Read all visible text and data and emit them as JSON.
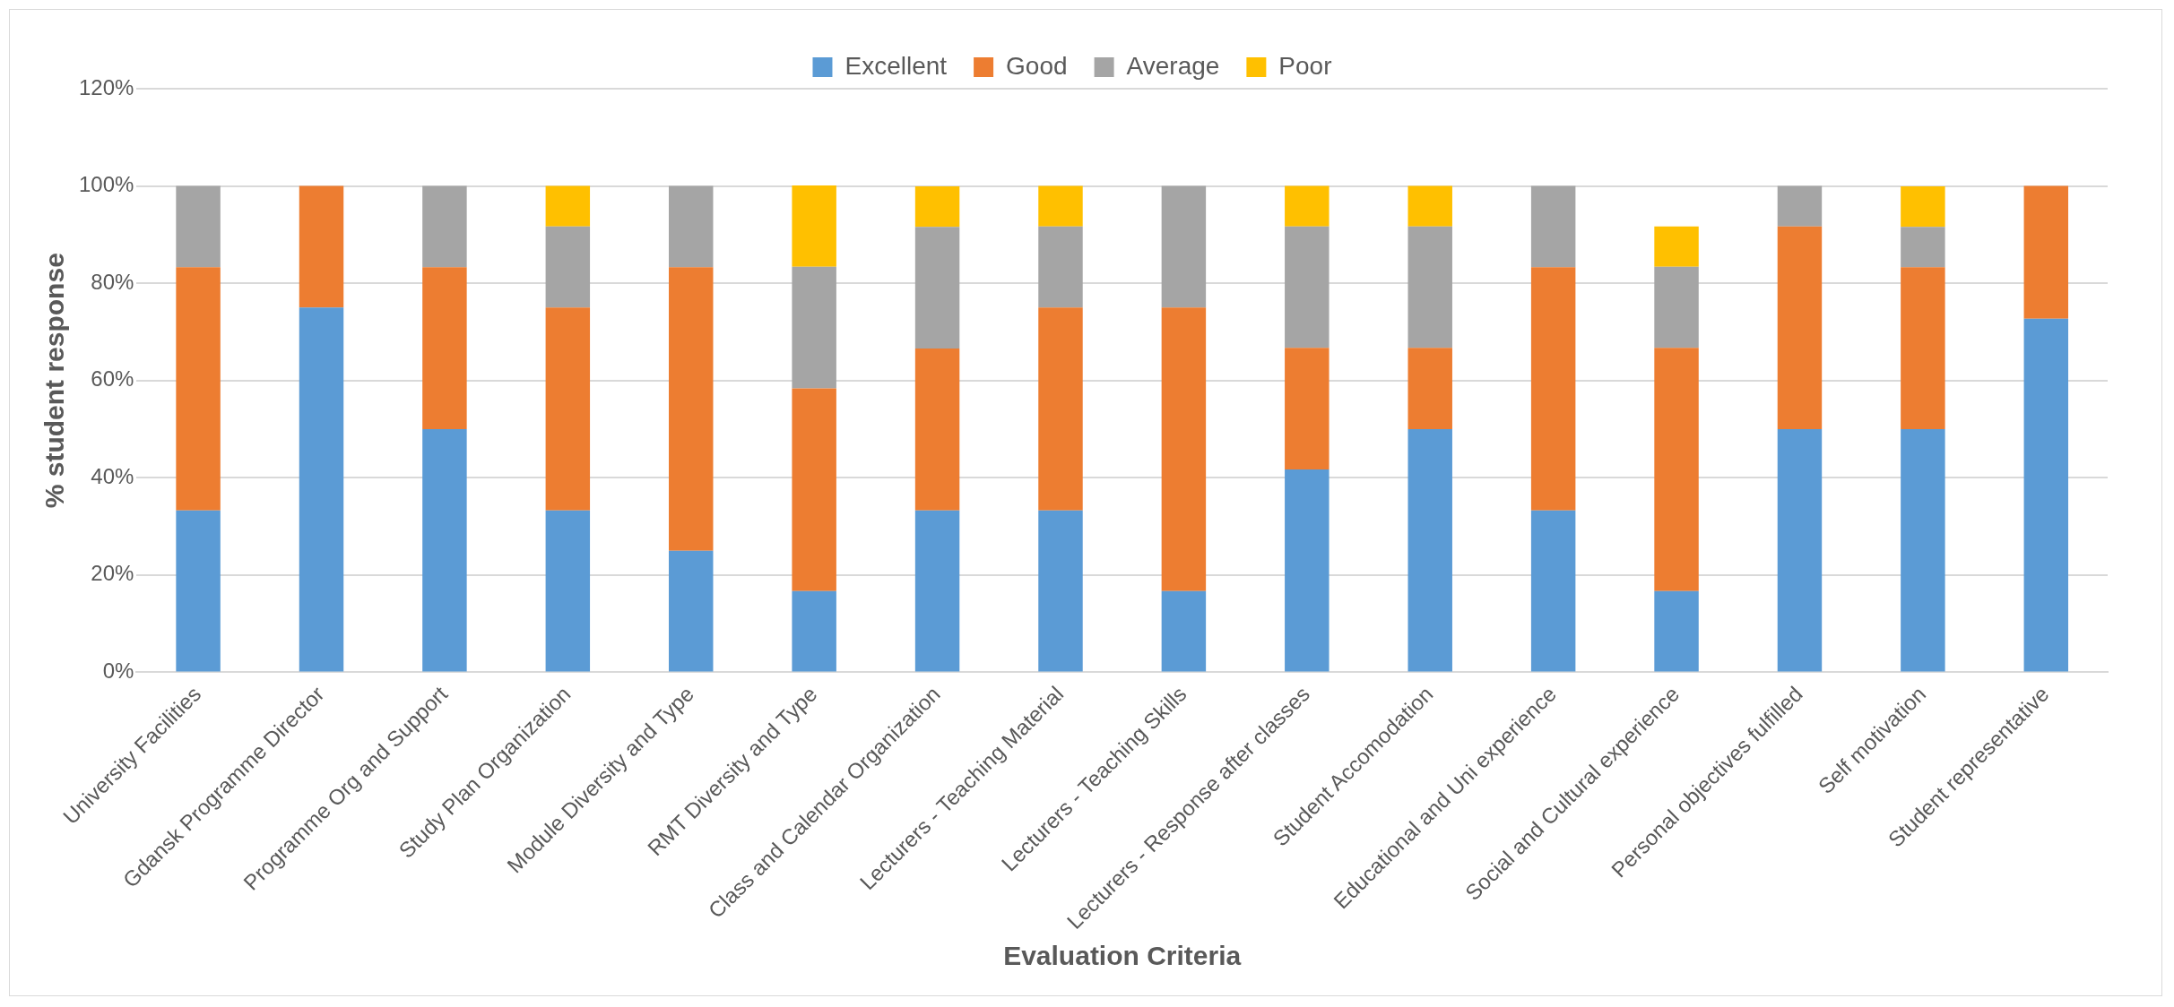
{
  "chart_data": {
    "type": "bar",
    "stacked": true,
    "xlabel": "Evaluation Criteria",
    "ylabel": "% student response",
    "categories": [
      "University Facilities",
      "Gdansk Programme Director",
      "Programme Org and Support",
      "Study Plan Organization",
      "Module Diversity and Type",
      "RMT Diversity and Type",
      "Class and Calendar Organization",
      "Lecturers - Teaching Material",
      "Lecturers - Teaching Skills",
      "Lecturers - Response after classes",
      "Student Accomodation",
      "Educational and Uni experience",
      "Social and Cultural experience",
      "Personal objectives fulfilled",
      "Self motivation",
      "Student representative"
    ],
    "series": [
      {
        "name": "Excellent",
        "color": "#5b9bd5",
        "values": [
          33.3,
          75,
          50,
          33.3,
          25,
          16.7,
          33.3,
          33.3,
          16.7,
          41.7,
          50,
          33.3,
          16.7,
          50,
          50,
          72.7
        ]
      },
      {
        "name": "Good",
        "color": "#ed7d31",
        "values": [
          50,
          25,
          33.3,
          41.7,
          58.3,
          41.7,
          33.3,
          41.7,
          58.3,
          25,
          16.7,
          50,
          50,
          41.7,
          33.3,
          27.3
        ]
      },
      {
        "name": "Average",
        "color": "#a5a5a5",
        "values": [
          16.7,
          0,
          16.7,
          16.7,
          16.7,
          25,
          25,
          16.7,
          25,
          25,
          25,
          16.7,
          16.7,
          8.3,
          8.3,
          0
        ]
      },
      {
        "name": "Poor",
        "color": "#ffc000",
        "values": [
          0,
          0,
          0,
          8.3,
          0,
          16.7,
          8.3,
          8.3,
          0,
          8.3,
          8.3,
          0,
          8.3,
          0,
          8.3,
          0
        ]
      }
    ],
    "ylim": [
      0,
      120
    ],
    "yticks": [
      {
        "value": 0,
        "label": "0%"
      },
      {
        "value": 20,
        "label": "20%"
      },
      {
        "value": 40,
        "label": "40%"
      },
      {
        "value": 60,
        "label": "60%"
      },
      {
        "value": 80,
        "label": "80%"
      },
      {
        "value": 100,
        "label": "100%"
      },
      {
        "value": 120,
        "label": "120%"
      }
    ],
    "grid": "y",
    "legend": "top"
  }
}
